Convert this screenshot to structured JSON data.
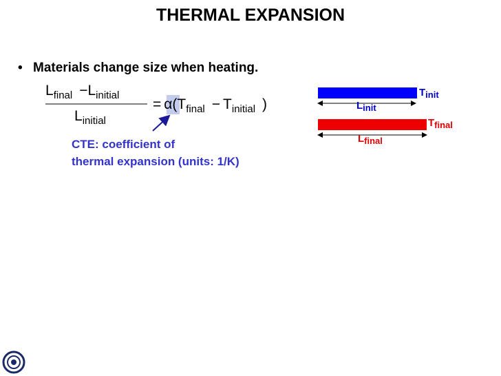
{
  "title": "THERMAL EXPANSION",
  "bullets": [
    "Materials change size when heating."
  ],
  "equation": {
    "num_a": "L",
    "num_a_sub": "final",
    "num_minus": "−",
    "num_b": "L",
    "num_b_sub": "initial",
    "den": "L",
    "den_sub": "initial",
    "equals": "=",
    "alpha": "α",
    "open": "(T",
    "t_a_sub": "final",
    "minus": "−",
    "t_b": "T",
    "t_b_sub": "initial",
    "close": ")"
  },
  "annotation": [
    "CTE: coefficient of",
    "thermal expansion (units: 1/K)"
  ],
  "diagram": {
    "t_init": {
      "base": "T",
      "sub": "init"
    },
    "l_init": {
      "base": "L",
      "sub": "init"
    },
    "t_final": {
      "base": "T",
      "sub": "final"
    },
    "l_final": {
      "base": "L",
      "sub": "final"
    }
  }
}
